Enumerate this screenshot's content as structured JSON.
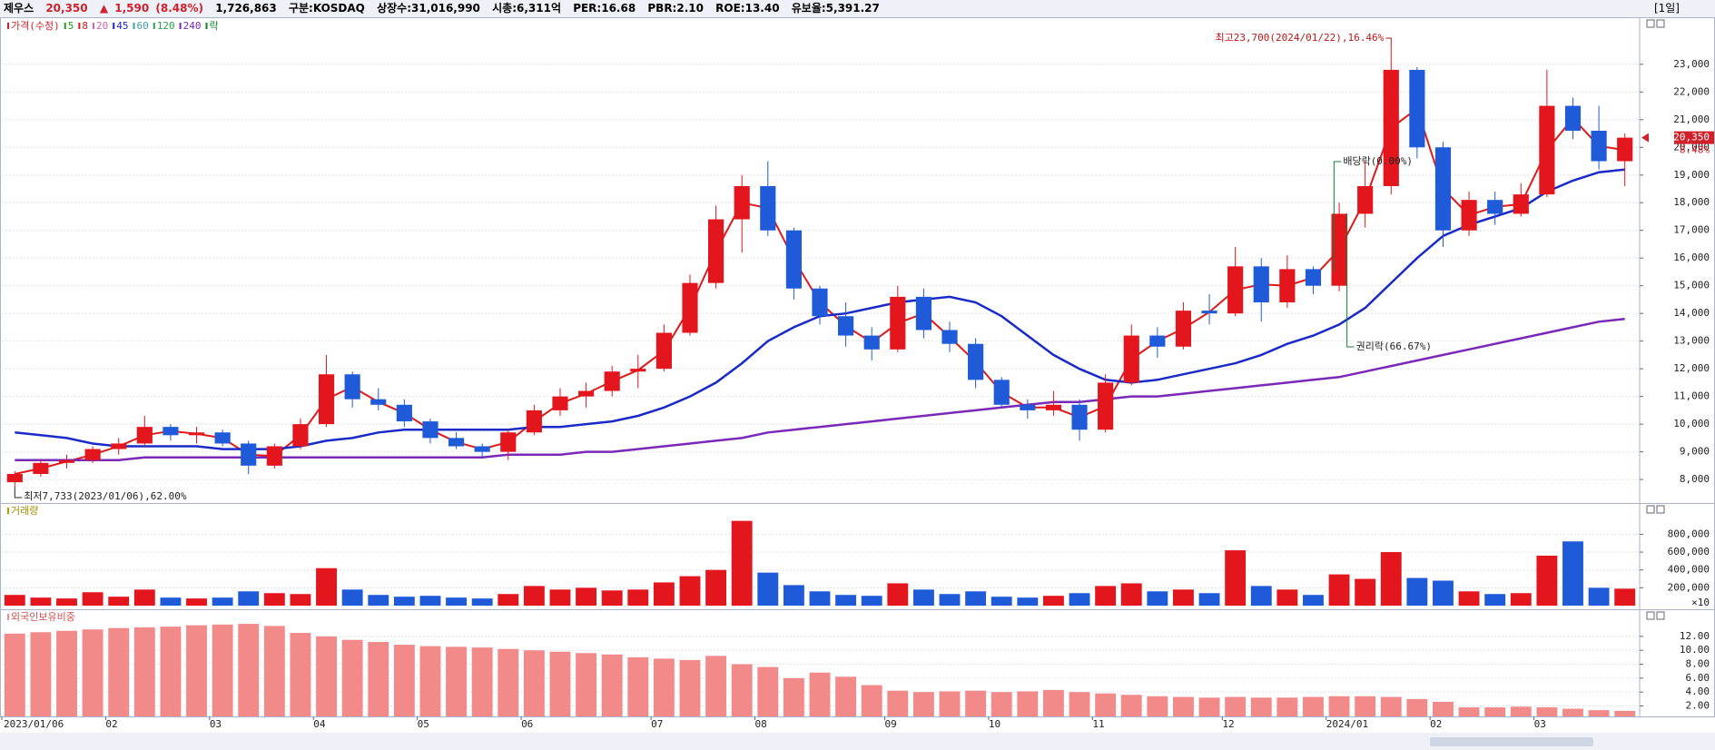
{
  "header": {
    "name": "제우스",
    "price": "20,350",
    "arrow": "▲",
    "change": "1,590",
    "change_pct": "(8.48%)",
    "volume": "1,726,863",
    "market": "구분:KOSDAQ",
    "shares": "상장수:31,016,990",
    "cap": "시총:6,311억",
    "per": "PER:16.68",
    "pbr": "PBR:2.10",
    "roe": "ROE:13.40",
    "reserve": "유보율:5,391.27",
    "period": "[1일]"
  },
  "chart_data": [
    {
      "type": "candlestick",
      "legend": [
        {
          "name": "가격(수정)",
          "color": "#d0202a"
        },
        {
          "name": "5",
          "color": "#1aa01a"
        },
        {
          "name": "8",
          "color": "#e01818"
        },
        {
          "name": "20",
          "color": "#c86ab0"
        },
        {
          "name": "45",
          "color": "#1a2ac8"
        },
        {
          "name": "60",
          "color": "#40a0a8"
        },
        {
          "name": "120",
          "color": "#28a050"
        },
        {
          "name": "240",
          "color": "#7a28b8"
        },
        {
          "name": "락",
          "color": "#108030"
        }
      ],
      "categories": [
        "2023/01/06",
        null,
        null,
        null,
        "02",
        null,
        null,
        null,
        "03",
        null,
        null,
        null,
        "04",
        null,
        null,
        null,
        "05",
        null,
        null,
        null,
        "06",
        null,
        null,
        null,
        null,
        "07",
        null,
        null,
        null,
        "08",
        null,
        null,
        null,
        null,
        "09",
        null,
        null,
        null,
        "10",
        null,
        null,
        null,
        "11",
        null,
        null,
        null,
        null,
        "12",
        null,
        null,
        null,
        "2024/01",
        null,
        null,
        null,
        "02",
        null,
        null,
        null,
        "03",
        null,
        null,
        null
      ],
      "open": [
        7900,
        8200,
        8600,
        8700,
        9100,
        9300,
        9900,
        9600,
        9700,
        9300,
        8500,
        9200,
        10000,
        11800,
        10900,
        10700,
        10100,
        9500,
        9200,
        9000,
        9700,
        10500,
        11000,
        11200,
        11900,
        12000,
        13300,
        15100,
        17400,
        18600,
        17000,
        14900,
        13900,
        13200,
        12700,
        14600,
        13400,
        12900,
        11600,
        10700,
        10500,
        10700,
        9800,
        11500,
        13200,
        12800,
        14100,
        14000,
        15700,
        14400,
        15600,
        15000,
        17600,
        18600,
        22800,
        20000,
        17000,
        18100,
        17600,
        18300,
        21500,
        20600,
        19500
      ],
      "high": [
        8300,
        8700,
        8900,
        9200,
        9500,
        10300,
        10000,
        9900,
        9800,
        9400,
        9300,
        10200,
        12500,
        11900,
        11300,
        10900,
        10200,
        9700,
        9300,
        9800,
        10700,
        11300,
        11500,
        12100,
        12500,
        13600,
        15400,
        17900,
        19000,
        19500,
        17100,
        15000,
        14400,
        13500,
        15000,
        14900,
        13700,
        13100,
        11700,
        10900,
        11200,
        10900,
        11800,
        13600,
        13500,
        14400,
        14700,
        16400,
        16000,
        16100,
        15700,
        18000,
        19500,
        23700,
        22900,
        20200,
        18400,
        18400,
        18700,
        22800,
        21800,
        21500,
        20500
      ],
      "low": [
        7733,
        8100,
        8400,
        8600,
        8900,
        9200,
        9400,
        9300,
        9200,
        8200,
        8400,
        9100,
        9900,
        10600,
        10500,
        9900,
        9300,
        9100,
        8800,
        8700,
        9600,
        10300,
        10600,
        11000,
        11300,
        11900,
        13200,
        14900,
        16200,
        16800,
        14500,
        13600,
        12800,
        12300,
        12600,
        13100,
        12600,
        11300,
        10600,
        10200,
        10300,
        9400,
        9700,
        11400,
        12400,
        12700,
        13600,
        13900,
        13700,
        14200,
        14700,
        14800,
        17100,
        18300,
        19600,
        16400,
        16800,
        17200,
        17500,
        18200,
        20300,
        19200,
        18600
      ],
      "close": [
        8200,
        8600,
        8700,
        9100,
        9300,
        9900,
        9600,
        9700,
        9300,
        8500,
        9200,
        10000,
        11800,
        10900,
        10700,
        10100,
        9500,
        9200,
        9000,
        9700,
        10500,
        11000,
        11200,
        11900,
        12000,
        13300,
        15100,
        17400,
        18600,
        17000,
        14900,
        13900,
        13200,
        12700,
        14600,
        13400,
        12900,
        11600,
        10700,
        10500,
        10700,
        9800,
        11500,
        13200,
        12800,
        14100,
        14000,
        15700,
        14400,
        15600,
        15000,
        17600,
        18600,
        22800,
        20000,
        17000,
        18100,
        17600,
        18300,
        21500,
        20600,
        19500,
        20350
      ],
      "up_color": "#e3151d",
      "down_color": "#1f5bd8",
      "series": [
        {
          "name": "8",
          "color": "#e01818",
          "width": 2,
          "values": [
            8200,
            8400,
            8650,
            8900,
            9200,
            9600,
            9750,
            9650,
            9500,
            8900,
            8850,
            9600,
            10900,
            11350,
            10800,
            10400,
            9800,
            9350,
            9100,
            9350,
            10100,
            10750,
            11100,
            11550,
            11950,
            12650,
            14200,
            16250,
            18000,
            17800,
            15950,
            14400,
            13550,
            12950,
            13650,
            14000,
            13150,
            12250,
            11150,
            10600,
            10600,
            10250,
            10650,
            12350,
            13000,
            13450,
            14050,
            14850,
            15050,
            15000,
            15300,
            16300,
            18100,
            20700,
            21400,
            18500,
            17550,
            17850,
            17950,
            19900,
            21050,
            20050,
            19900
          ]
        },
        {
          "name": "45",
          "color": "#1a2ac8",
          "width": 2.5,
          "values": [
            9700,
            9600,
            9500,
            9300,
            9200,
            9200,
            9200,
            9200,
            9100,
            9100,
            9100,
            9200,
            9400,
            9500,
            9700,
            9800,
            9800,
            9800,
            9800,
            9800,
            9900,
            9900,
            10000,
            10100,
            10300,
            10600,
            11000,
            11500,
            12200,
            13000,
            13500,
            13900,
            14000,
            14200,
            14400,
            14500,
            14600,
            14400,
            13900,
            13200,
            12500,
            12000,
            11600,
            11500,
            11600,
            11800,
            12000,
            12200,
            12500,
            12900,
            13200,
            13600,
            14200,
            15100,
            16000,
            16800,
            17200,
            17500,
            17800,
            18400,
            18800,
            19100,
            19200
          ]
        },
        {
          "name": "240",
          "color": "#7a28b8",
          "width": 2.5,
          "values": [
            8700,
            8700,
            8700,
            8700,
            8700,
            8800,
            8800,
            8800,
            8800,
            8800,
            8800,
            8800,
            8800,
            8800,
            8800,
            8800,
            8800,
            8800,
            8800,
            8900,
            8900,
            8900,
            9000,
            9000,
            9100,
            9200,
            9300,
            9400,
            9500,
            9700,
            9800,
            9900,
            10000,
            10100,
            10200,
            10300,
            10400,
            10500,
            10600,
            10700,
            10800,
            10800,
            10900,
            11000,
            11000,
            11100,
            11200,
            11300,
            11400,
            11500,
            11600,
            11700,
            11900,
            12100,
            12300,
            12500,
            12700,
            12900,
            13100,
            13300,
            13500,
            13700,
            13800
          ]
        }
      ],
      "ylim": [
        7150,
        24700
      ],
      "yticks": [
        {
          "value": 8000,
          "label": "8,000"
        },
        {
          "value": 9000,
          "label": "9,000"
        },
        {
          "value": 10000,
          "label": "10,000"
        },
        {
          "value": 11000,
          "label": "11,000"
        },
        {
          "value": 12000,
          "label": "12,000"
        },
        {
          "value": 13000,
          "label": "13,000"
        },
        {
          "value": 14000,
          "label": "14,000"
        },
        {
          "value": 15000,
          "label": "15,000"
        },
        {
          "value": 16000,
          "label": "16,000"
        },
        {
          "value": 17000,
          "label": "17,000"
        },
        {
          "value": 18000,
          "label": "18,000"
        },
        {
          "value": 19000,
          "label": "19,000"
        },
        {
          "value": 20000,
          "label": "20,000"
        },
        {
          "value": 21000,
          "label": "21,000"
        },
        {
          "value": 22000,
          "label": "22,000"
        },
        {
          "value": 23000,
          "label": "23,000"
        }
      ],
      "grid": true,
      "annotations": {
        "high": "최고23,700(2024/01/22),16.46%",
        "low": "최저7,733(2023/01/06),62.00%",
        "ex_dividend": "배당락(0.00%)",
        "ex_rights": "권리락(66.67%)"
      },
      "last_change_label": "8.48%"
    },
    {
      "type": "bar",
      "title": "거래량",
      "values": [
        120000,
        90000,
        80000,
        150000,
        100000,
        180000,
        90000,
        80000,
        90000,
        160000,
        140000,
        130000,
        420000,
        180000,
        120000,
        100000,
        110000,
        90000,
        80000,
        130000,
        220000,
        180000,
        200000,
        170000,
        180000,
        260000,
        330000,
        400000,
        950000,
        370000,
        230000,
        160000,
        120000,
        110000,
        250000,
        180000,
        130000,
        160000,
        100000,
        90000,
        110000,
        140000,
        220000,
        250000,
        160000,
        180000,
        140000,
        620000,
        220000,
        180000,
        120000,
        350000,
        300000,
        600000,
        310000,
        280000,
        160000,
        130000,
        140000,
        560000,
        720000,
        200000,
        190000
      ],
      "up_color": "#e3151d",
      "down_color": "#1f5bd8",
      "ylim": [
        0,
        1150000
      ],
      "yticks": [
        {
          "value": 200000,
          "label": "200,000"
        },
        {
          "value": 400000,
          "label": "400,000"
        },
        {
          "value": 600000,
          "label": "600,000"
        },
        {
          "value": 800000,
          "label": "800,000"
        }
      ],
      "unit_label": "×10",
      "grid": true
    },
    {
      "type": "bar",
      "title": "외국인보유비중",
      "color": "#f28a8a",
      "values": [
        12.4,
        12.6,
        12.8,
        13.0,
        13.2,
        13.3,
        13.4,
        13.6,
        13.7,
        13.8,
        13.5,
        12.5,
        12.0,
        11.5,
        11.2,
        10.8,
        10.6,
        10.5,
        10.4,
        10.2,
        10.0,
        9.8,
        9.6,
        9.4,
        9.0,
        8.8,
        8.6,
        9.2,
        8.0,
        7.6,
        6.0,
        6.8,
        6.2,
        5.0,
        4.2,
        4.0,
        4.1,
        4.2,
        4.0,
        4.1,
        4.3,
        4.0,
        3.8,
        3.6,
        3.4,
        3.3,
        3.2,
        3.3,
        3.2,
        3.2,
        3.3,
        3.4,
        3.4,
        3.3,
        3.0,
        2.6,
        1.8,
        1.8,
        1.9,
        1.8,
        1.6,
        1.4,
        1.3
      ],
      "ylim": [
        0.5,
        15.9
      ],
      "yticks": [
        {
          "value": 2,
          "label": "2.00"
        },
        {
          "value": 4,
          "label": "4.00"
        },
        {
          "value": 6,
          "label": "6.00"
        },
        {
          "value": 8,
          "label": "8.00"
        },
        {
          "value": 10,
          "label": "10.00"
        },
        {
          "value": 12,
          "label": "12.00"
        }
      ],
      "grid": true
    }
  ]
}
